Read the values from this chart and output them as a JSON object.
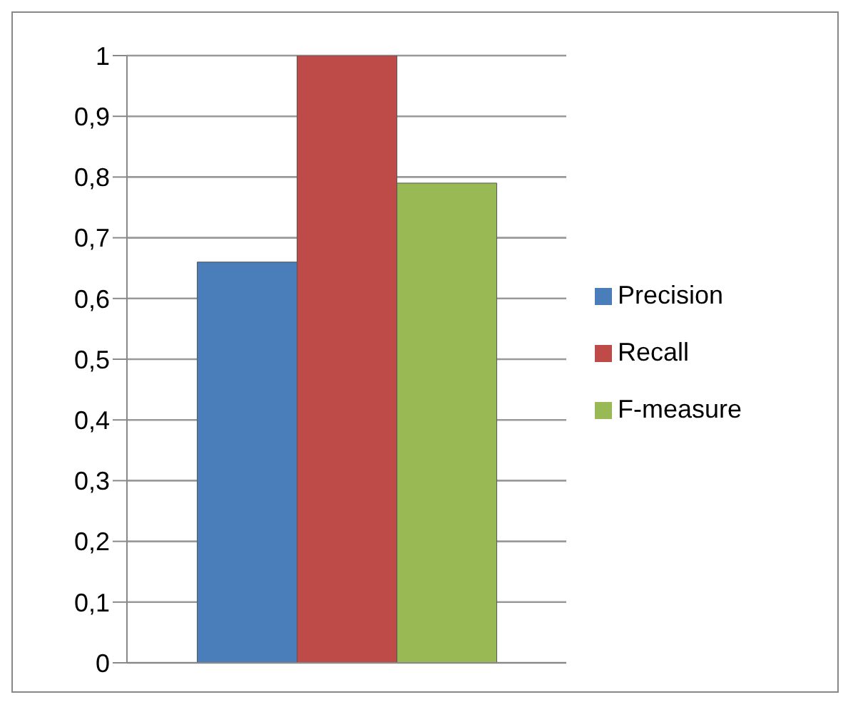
{
  "chart_data": {
    "type": "bar",
    "categories": [
      null
    ],
    "series": [
      {
        "name": "Precision",
        "color": "#4a7ebb",
        "values": [
          0.66
        ]
      },
      {
        "name": "Recall",
        "color": "#be4b48",
        "values": [
          1
        ]
      },
      {
        "name": "F-measure",
        "color": "#98b954",
        "values": [
          0.79
        ]
      }
    ],
    "ylim": [
      0,
      1
    ],
    "yticks": [
      0,
      {
        "value": 0.1,
        "label": "0,1"
      },
      {
        "value": 0.2,
        "label": "0,2"
      },
      {
        "value": 0.3,
        "label": "0,3"
      },
      {
        "value": 0.4,
        "label": "0,4"
      },
      {
        "value": 0.5,
        "label": "0,5"
      },
      {
        "value": 0.6,
        "label": "0,6"
      },
      {
        "value": 0.7,
        "label": "0,7"
      },
      {
        "value": 0.8,
        "label": "0,8"
      },
      {
        "value": 0.9,
        "label": "0,9"
      },
      1
    ],
    "grid": "y",
    "legend": "right"
  }
}
